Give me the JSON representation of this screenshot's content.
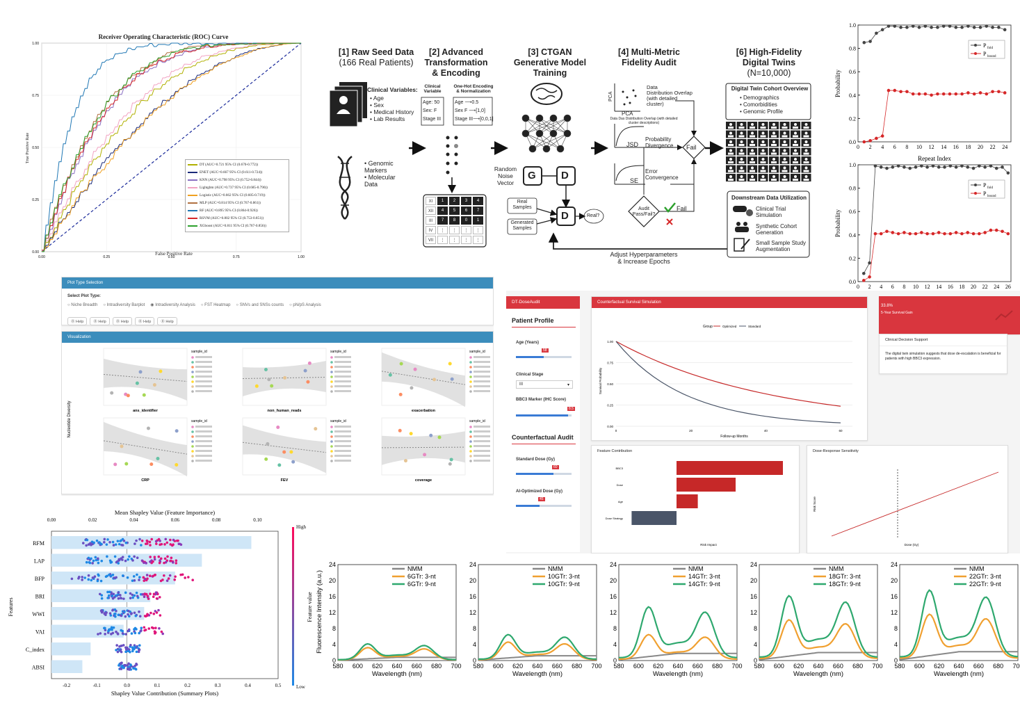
{
  "roc": {
    "title": "Receiver Operating Characteristic (ROC) Curve",
    "xlabel": "False Positive Rate",
    "ylabel": "True Positive Rate",
    "ticks": [
      "0.00",
      "0.25",
      "0.50",
      "0.75",
      "1.00"
    ],
    "models": [
      {
        "label": "DT (AUC=0.721  95% CI (0.670-0.772))",
        "color": "#b0b000",
        "auc": 0.721
      },
      {
        "label": "ENET (AUC=0.667  95% CI (0.611-0.724))",
        "color": "#1a2a7a",
        "auc": 0.667
      },
      {
        "label": "KNN (AUC=0.798  95% CI (0.752-0.844))",
        "color": "#8a6fc2",
        "auc": 0.798
      },
      {
        "label": "Lightgbm (AUC=0.737  95% CI (0.685-0.790))",
        "color": "#f2a3c2",
        "auc": 0.737
      },
      {
        "label": "Logistic (AUC=0.662  95% CI (0.605-0.719))",
        "color": "#f0a020",
        "auc": 0.662
      },
      {
        "label": "MLP (AUC=0.814  95% CI (0.767-0.861))",
        "color": "#b07040",
        "auc": 0.814
      },
      {
        "label": "RF (AUC=0.895  95% CI (0.864-0.926))",
        "color": "#1f77b4",
        "auc": 0.895
      },
      {
        "label": "RSVM (AUC=0.802  95% CI (0.753-0.851))",
        "color": "#d62728",
        "auc": 0.802
      },
      {
        "label": "XGboost (AUC=0.811  95% CI (0.767-0.856))",
        "color": "#2ca02c",
        "auc": 0.811
      }
    ]
  },
  "flow": {
    "s1": {
      "title": "[1] Raw Seed Data",
      "sub": "(166 Real Patients)",
      "cv_head": "Clinical Variables:",
      "cv": [
        "• Age",
        "• Sex",
        "• Medical History",
        "• Lab Results"
      ],
      "gen": [
        "• Genomic",
        "Markers",
        "• Molecular",
        "Data"
      ]
    },
    "s2": {
      "title": "[2] Advanced",
      "t2": "Transformation",
      "t3": "& Encoding",
      "h1": "Clinical Variable",
      "h2": "One-Hot Encoding & Normalization",
      "rows": [
        "Age: 50",
        "Sex: F",
        "Stage III"
      ],
      "out": [
        "Age ⟶0.5",
        "Sex F ⟶[1,0]",
        "Stage III⟶[0,0,1]"
      ],
      "roman": [
        "XI",
        "XII",
        "III",
        "IV",
        "VII"
      ]
    },
    "s3": {
      "title": "[3] CTGAN",
      "t2": "Generative Model",
      "t3": "Training",
      "noise": [
        "Random",
        "Noise",
        "Vector"
      ],
      "g": "G",
      "d": "D",
      "real": [
        "Real",
        "Samples"
      ],
      "gen": [
        "Generated",
        "Samples"
      ],
      "q": "Real?"
    },
    "s4": {
      "title": "[4] Multi-Metric",
      "t2": "Fidelity Audit",
      "pca": "PCA",
      "pca_l": [
        "Data",
        "Distribution Overlap",
        "(with detailed",
        "cluster)"
      ],
      "pca_n": "Data Das Distribution Overlap (with detailed cluster descriptions)",
      "jsd": "JSD",
      "jsd_l": [
        "Probability",
        "Divergence"
      ],
      "se": "SE",
      "se_l": [
        "Error",
        "Convergence"
      ],
      "fail": "Fail",
      "audit": [
        "Audit",
        "Pass/Fail?"
      ],
      "fail2": "Fail",
      "adjust": [
        "Adjust Hyperparameters",
        "& Increase Epochs"
      ]
    },
    "s6": {
      "title": "[6] High-Fidelity",
      "t2": "Digital Twins",
      "sub": "(N=10,000)",
      "ov": "Digital Twin Cohort Overview",
      "items": [
        "• Demographics",
        "• Comorbidities",
        "• Genomic Profile"
      ],
      "dhead": "Downstream Data Utilization",
      "uses": [
        "Clinical Trial Simulation",
        "Synthetic Cohort Generation",
        "Small Sample Study Augmentation"
      ]
    }
  },
  "prob": {
    "ylabel": "Probability",
    "xlabel": "Repeat Index",
    "legend1": "P",
    "sub1": "fold",
    "legend2": "P",
    "sub2": "bound",
    "top": {
      "x": [
        1,
        2,
        3,
        4,
        5,
        6,
        7,
        8,
        9,
        10,
        11,
        12,
        13,
        14,
        15,
        16,
        17,
        18,
        19,
        20,
        21,
        22,
        23,
        24
      ],
      "fold": [
        0.85,
        0.86,
        0.93,
        0.96,
        0.99,
        0.99,
        0.98,
        0.98,
        0.99,
        0.98,
        0.99,
        0.98,
        0.98,
        0.99,
        0.99,
        0.98,
        0.98,
        0.99,
        0.98,
        0.98,
        0.99,
        0.98,
        0.98,
        0.96
      ],
      "bound": [
        0.0,
        0.01,
        0.03,
        0.05,
        0.44,
        0.44,
        0.43,
        0.43,
        0.41,
        0.41,
        0.41,
        0.4,
        0.41,
        0.41,
        0.41,
        0.41,
        0.41,
        0.42,
        0.41,
        0.42,
        0.41,
        0.43,
        0.43,
        0.42
      ],
      "xt": [
        "0",
        "2",
        "4",
        "6",
        "8",
        "10",
        "12",
        "14",
        "16",
        "18",
        "20",
        "22",
        "24"
      ],
      "yt": [
        "0.0",
        "0.2",
        "0.4",
        "0.6",
        "0.8",
        "1.0"
      ]
    },
    "bot": {
      "x": [
        1,
        2,
        3,
        4,
        5,
        6,
        7,
        8,
        9,
        10,
        11,
        12,
        13,
        14,
        15,
        16,
        17,
        18,
        19,
        20,
        21,
        22,
        23,
        24,
        25,
        26
      ],
      "fold": [
        0.07,
        0.16,
        0.99,
        0.98,
        0.97,
        0.98,
        0.99,
        0.98,
        0.97,
        0.98,
        0.99,
        0.98,
        0.99,
        0.98,
        0.98,
        0.99,
        0.98,
        0.99,
        0.98,
        0.97,
        0.99,
        0.98,
        0.99,
        0.97,
        0.98,
        0.93
      ],
      "bound": [
        0.01,
        0.04,
        0.41,
        0.41,
        0.43,
        0.42,
        0.41,
        0.42,
        0.41,
        0.41,
        0.42,
        0.41,
        0.41,
        0.42,
        0.41,
        0.41,
        0.42,
        0.41,
        0.42,
        0.41,
        0.41,
        0.42,
        0.44,
        0.44,
        0.43,
        0.41
      ],
      "xt": [
        "0",
        "2",
        "4",
        "6",
        "8",
        "10",
        "12",
        "14",
        "16",
        "18",
        "20",
        "22",
        "24",
        "26"
      ],
      "yt": [
        "0.0",
        "0.2",
        "0.4",
        "0.6",
        "0.8",
        "1.0"
      ]
    }
  },
  "plotsel": {
    "header": "Plot Type Selection",
    "label": "Select Plot Type:",
    "options": [
      "Niche Breadth",
      "Intradiversity Barplot",
      "Intradiversity Analysis",
      "FST Heatmap",
      "SNVs and SNSs counts",
      "pN/pS Analysis"
    ],
    "help": [
      "Help",
      "Help",
      "Help",
      "Help",
      "Help"
    ],
    "viz": "Visualization",
    "ylabel": "Nucleotide Diversity",
    "xlabels": [
      "ans_identifier",
      "non_human_reads",
      "exacerbation",
      "CRP",
      "FEV",
      "coverage"
    ],
    "legend": "sample_id"
  },
  "dose": {
    "brand": "DT-DoseAudit",
    "profile": "Patient Profile",
    "age": "Age (Years)",
    "age_v": "58",
    "stage_l": "Clinical Stage",
    "stage_v": "III",
    "bbc3": "BBC3 Marker (IHC Score)",
    "bbc3_v": "8.5",
    "audit": "Counterfactual Audit",
    "std": "Standard Dose (Gy)",
    "std_v": "60",
    "ai": "AI-Optimized Dose (Gy)",
    "ai_v": "45",
    "surv_title": "Counterfactual Survival Simulation",
    "legend_t": "Group",
    "legend": [
      "Optimized",
      "Standard"
    ],
    "ylab": "Survival Probability",
    "xlab": "Follow-up Months",
    "yt": [
      "1.00",
      "0.75",
      "0.50",
      "0.25",
      "0.00"
    ],
    "xt": [
      "0",
      "20",
      "40",
      "60"
    ],
    "gain_v": "33.8%",
    "gain_l": "5-Year Survival Gain",
    "cds": "Clinical Decision Support",
    "cds_text": "The digital twin simulation suggests that dose de-escalation is beneficial for patients with high BBC3 expression.",
    "feat_title": "Feature Contribution",
    "feat_x": "Risk Impact",
    "dr_title": "Dose-Response Sensitivity",
    "dr_x": "Dose (Gy)",
    "dr_y": "Risk Score"
  },
  "shap": {
    "top": "Mean Shapley Value (Feature Importance)",
    "bottom": "Shapley Value Contribution (Summary Plots)",
    "ylabel": "Features",
    "cbar": "Feature value",
    "high": "High",
    "low": "Low",
    "xt_top": [
      "0.00",
      "0.02",
      "0.04",
      "0.06",
      "0.08",
      "0.10"
    ],
    "xt_bot": [
      "-0.2",
      "-0.1",
      "0.0",
      "0.1",
      "0.2",
      "0.3",
      "0.4",
      "0.5"
    ]
  },
  "fluor": {
    "ylabel": "Fluorescence Intensity (a.u.)",
    "xlabel": "Wavelength (nm)",
    "xt": [
      "580",
      "600",
      "620",
      "640",
      "660",
      "680",
      "700"
    ],
    "yt": [
      "0",
      "4",
      "8",
      "12",
      "16",
      "20",
      "24"
    ],
    "panels": [
      {
        "l2": "6GTr: 3-nt",
        "l3": "6GTr: 9-nt"
      },
      {
        "l2": "10GTr: 3-nt",
        "l3": "10GTr: 9-nt"
      },
      {
        "l2": "14GTr: 3-nt",
        "l3": "14GTr: 9-nt"
      },
      {
        "l2": "18GTr: 3-nt",
        "l3": "18GTr: 9-nt"
      },
      {
        "l2": "22GTr: 3-nt",
        "l3": "22GTr: 9-nt"
      }
    ],
    "l1": "NMM"
  },
  "chart_data": [
    {
      "type": "line",
      "title": "Receiver Operating Characteristic (ROC) Curve",
      "xlabel": "False Positive Rate",
      "ylabel": "True Positive Rate",
      "xlim": [
        0,
        1
      ],
      "ylim": [
        0,
        1
      ],
      "series": [
        {
          "name": "DT",
          "auc": 0.721
        },
        {
          "name": "ENET",
          "auc": 0.667
        },
        {
          "name": "KNN",
          "auc": 0.798
        },
        {
          "name": "Lightgbm",
          "auc": 0.737
        },
        {
          "name": "Logistic",
          "auc": 0.662
        },
        {
          "name": "MLP",
          "auc": 0.814
        },
        {
          "name": "RF",
          "auc": 0.895
        },
        {
          "name": "RSVM",
          "auc": 0.802
        },
        {
          "name": "XGboost",
          "auc": 0.811
        }
      ]
    },
    {
      "type": "line",
      "ylabel": "Probability",
      "xlabel": "Repeat Index",
      "ylim": [
        0,
        1
      ],
      "series": [
        {
          "name": "P fold"
        },
        {
          "name": "P bound"
        }
      ]
    },
    {
      "type": "bar",
      "title": "Mean Shapley Value (Feature Importance)",
      "categories": [
        "RFM",
        "LAP",
        "BFP",
        "BRI",
        "WWI",
        "VAI",
        "C_index",
        "ABSI"
      ],
      "values": [
        0.097,
        0.073,
        0.06,
        0.048,
        0.045,
        0.035,
        0.019,
        0.015
      ]
    },
    {
      "type": "line",
      "title": "Counterfactual Survival Simulation",
      "xlabel": "Follow-up Months",
      "ylabel": "Survival Probability",
      "series": [
        {
          "name": "Optimized"
        },
        {
          "name": "Standard"
        }
      ]
    },
    {
      "type": "bar",
      "title": "Feature Contribution",
      "categories": [
        "BBC3",
        "Dose",
        "Age",
        "Dose Strategy"
      ],
      "values": [
        0.9,
        0.5,
        0.18,
        -0.38
      ]
    },
    {
      "type": "line",
      "xlabel": "Wavelength (nm)",
      "ylabel": "Fluorescence Intensity (a.u.)",
      "series": [
        {
          "name": "NMM"
        },
        {
          "name": "3-nt"
        },
        {
          "name": "9-nt"
        }
      ]
    }
  ]
}
